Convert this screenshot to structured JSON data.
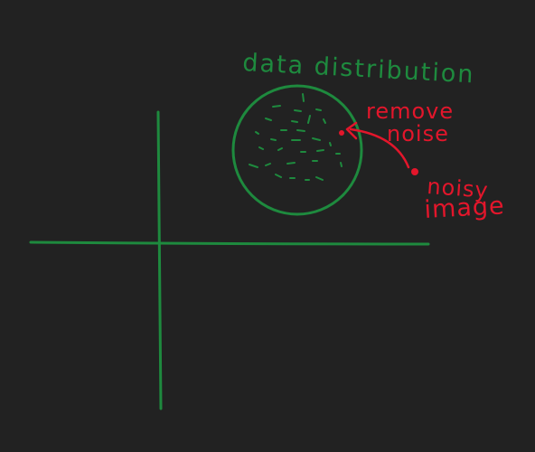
{
  "labels": {
    "distribution_title": "data distribution",
    "remove_line1": "remove",
    "remove_line2": "noise",
    "noisy_line1": "noisy",
    "noisy_line2": "image"
  },
  "colors": {
    "background": "#222222",
    "green": "#1e8a3e",
    "red": "#e3162b"
  }
}
